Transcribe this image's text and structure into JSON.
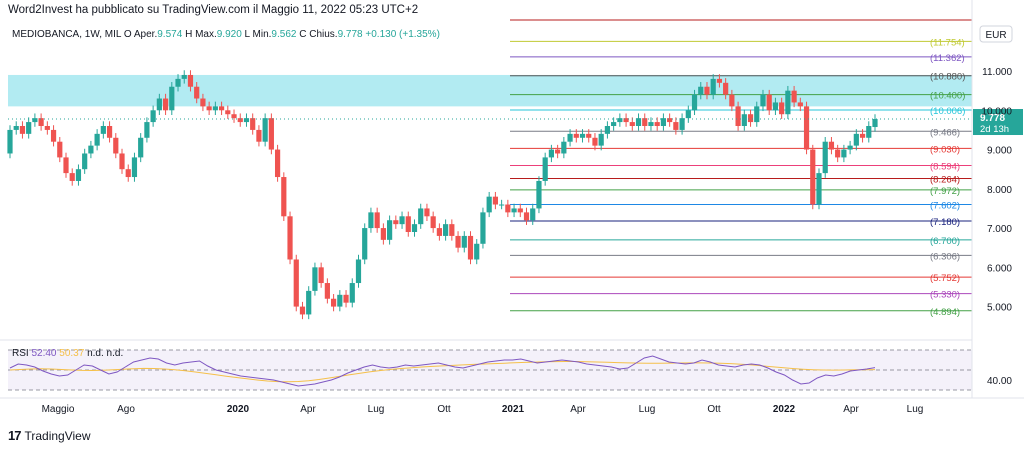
{
  "header": {
    "credit": "Word2Invest ha pubblicato su TradingView.com il Maggio 11, 2022 05:23 UTC+2",
    "symbol": "MEDIOBANCA, 1W, MIL",
    "ohlc": [
      {
        "label": "O",
        "value": ""
      },
      {
        "label": "Aper.",
        "value": "9.574"
      },
      {
        "label": "H",
        "value": ""
      },
      {
        "label": "Max.",
        "value": "9.920"
      },
      {
        "label": "L",
        "value": ""
      },
      {
        "label": "Min.",
        "value": "9.562"
      },
      {
        "label": "C",
        "value": ""
      },
      {
        "label": "Chius.",
        "value": "9.778"
      }
    ],
    "change": "+0.130 (+1.35%)"
  },
  "colors": {
    "up": "#26a69a",
    "down": "#ef5350",
    "zone": "#b2ebf2",
    "rsi_line": "#7e57c2",
    "rsi_ma": "#f5c04a",
    "price_tag": "#26a69a"
  },
  "currency": "EUR",
  "footer": {
    "logo_text": "TradingView",
    "logo_icon": "tradingview-logo-icon"
  },
  "price_tag": {
    "value": "9.778",
    "countdown": "2d 13h"
  },
  "rsi_panel": {
    "label": "RSI",
    "value": "52.40",
    "ma_value": "50.37",
    "extra": [
      "n.d.",
      "n.d."
    ],
    "axis_label": "40.00"
  },
  "chart_data": {
    "type": "candlestick",
    "title": "MEDIOBANCA, 1W, MIL",
    "ylim": [
      4.2,
      12.3
    ],
    "y_ticks": [
      5.0,
      6.0,
      7.0,
      8.0,
      9.0,
      10.0,
      11.0
    ],
    "y_tick_labels": [
      "5.000",
      "6.000",
      "7.000",
      "8.000",
      "9.000",
      "10.000",
      "11.000"
    ],
    "x_tick_labels": [
      "Maggio",
      "Ago",
      "2020",
      "Apr",
      "Lug",
      "Ott",
      "2021",
      "Apr",
      "Lug",
      "Ott",
      "2022",
      "Apr",
      "Lug"
    ],
    "resistance_zone": [
      10.1,
      10.9
    ],
    "levels": [
      {
        "value": 12.3,
        "label": "",
        "color": "#b71c1c"
      },
      {
        "value": 11.754,
        "label": "(11.754)",
        "color": "#c0ca33"
      },
      {
        "value": 11.362,
        "label": "(11.362)",
        "color": "#7e57c2"
      },
      {
        "value": 10.88,
        "label": "(10.880)",
        "color": "#555555"
      },
      {
        "value": 10.4,
        "label": "(10.400)",
        "color": "#43a047"
      },
      {
        "value": 10.006,
        "label": "(10.006)",
        "color": "#26c6da"
      },
      {
        "value": 9.466,
        "label": "(9.466)",
        "color": "#787b86"
      },
      {
        "value": 9.03,
        "label": "(9.030)",
        "color": "#e53935"
      },
      {
        "value": 8.594,
        "label": "(8.594)",
        "color": "#ec407a"
      },
      {
        "value": 8.264,
        "label": "(8.264)",
        "color": "#b71c1c"
      },
      {
        "value": 7.972,
        "label": "(7.972)",
        "color": "#43a047"
      },
      {
        "value": 7.602,
        "label": "(7.602)",
        "color": "#1e88e5"
      },
      {
        "value": 7.18,
        "label": "(7.180)",
        "color": "#1a237e"
      },
      {
        "value": 6.7,
        "label": "(6.700)",
        "color": "#26a69a"
      },
      {
        "value": 6.306,
        "label": "(6.306)",
        "color": "#787b86"
      },
      {
        "value": 5.752,
        "label": "(5.752)",
        "color": "#e53935"
      },
      {
        "value": 5.33,
        "label": "(5.330)",
        "color": "#ab47bc"
      },
      {
        "value": 4.894,
        "label": "(4.894)",
        "color": "#43a047"
      }
    ],
    "candles": [
      [
        8.9,
        9.5
      ],
      [
        9.5,
        9.6
      ],
      [
        9.6,
        9.4
      ],
      [
        9.4,
        9.7
      ],
      [
        9.7,
        9.8
      ],
      [
        9.8,
        9.6
      ],
      [
        9.6,
        9.5
      ],
      [
        9.5,
        9.2
      ],
      [
        9.2,
        8.8
      ],
      [
        8.8,
        8.4
      ],
      [
        8.4,
        8.2
      ],
      [
        8.2,
        8.5
      ],
      [
        8.5,
        8.9
      ],
      [
        8.9,
        9.1
      ],
      [
        9.1,
        9.4
      ],
      [
        9.4,
        9.6
      ],
      [
        9.6,
        9.3
      ],
      [
        9.3,
        8.9
      ],
      [
        8.9,
        8.5
      ],
      [
        8.5,
        8.3
      ],
      [
        8.3,
        8.8
      ],
      [
        8.8,
        9.3
      ],
      [
        9.3,
        9.7
      ],
      [
        9.7,
        10.0
      ],
      [
        10.0,
        10.3
      ],
      [
        10.3,
        10.0
      ],
      [
        10.0,
        10.6
      ],
      [
        10.6,
        10.8
      ],
      [
        10.8,
        10.9
      ],
      [
        10.9,
        10.6
      ],
      [
        10.6,
        10.3
      ],
      [
        10.3,
        10.1
      ],
      [
        10.1,
        10.0
      ],
      [
        10.0,
        10.1
      ],
      [
        10.1,
        10.0
      ],
      [
        10.0,
        9.9
      ],
      [
        9.9,
        9.8
      ],
      [
        9.8,
        9.7
      ],
      [
        9.7,
        9.8
      ],
      [
        9.8,
        9.5
      ],
      [
        9.5,
        9.2
      ],
      [
        9.2,
        9.8
      ],
      [
        9.8,
        9.0
      ],
      [
        9.0,
        8.3
      ],
      [
        8.3,
        7.3
      ],
      [
        7.3,
        6.2
      ],
      [
        6.2,
        5.0
      ],
      [
        5.0,
        4.8
      ],
      [
        4.8,
        5.4
      ],
      [
        5.4,
        6.0
      ],
      [
        6.0,
        5.6
      ],
      [
        5.6,
        5.2
      ],
      [
        5.2,
        5.0
      ],
      [
        5.0,
        5.3
      ],
      [
        5.3,
        5.1
      ],
      [
        5.1,
        5.6
      ],
      [
        5.6,
        6.2
      ],
      [
        6.2,
        7.0
      ],
      [
        7.0,
        7.4
      ],
      [
        7.4,
        7.0
      ],
      [
        7.0,
        6.7
      ],
      [
        6.7,
        7.2
      ],
      [
        7.2,
        7.1
      ],
      [
        7.1,
        7.3
      ],
      [
        7.3,
        6.9
      ],
      [
        6.9,
        7.1
      ],
      [
        7.1,
        7.5
      ],
      [
        7.5,
        7.3
      ],
      [
        7.3,
        7.0
      ],
      [
        7.0,
        6.8
      ],
      [
        6.8,
        7.1
      ],
      [
        7.1,
        6.8
      ],
      [
        6.8,
        6.5
      ],
      [
        6.5,
        6.8
      ],
      [
        6.8,
        6.2
      ],
      [
        6.2,
        6.6
      ],
      [
        6.6,
        7.4
      ],
      [
        7.4,
        7.8
      ],
      [
        7.8,
        7.6
      ],
      [
        7.6,
        7.6
      ],
      [
        7.6,
        7.4
      ],
      [
        7.4,
        7.5
      ],
      [
        7.5,
        7.4
      ],
      [
        7.4,
        7.2
      ],
      [
        7.2,
        7.5
      ],
      [
        7.5,
        8.2
      ],
      [
        8.2,
        8.8
      ],
      [
        8.8,
        9.0
      ],
      [
        9.0,
        8.9
      ],
      [
        8.9,
        9.2
      ],
      [
        9.2,
        9.4
      ],
      [
        9.4,
        9.3
      ],
      [
        9.3,
        9.4
      ],
      [
        9.4,
        9.3
      ],
      [
        9.3,
        9.1
      ],
      [
        9.1,
        9.4
      ],
      [
        9.4,
        9.6
      ],
      [
        9.6,
        9.7
      ],
      [
        9.7,
        9.8
      ],
      [
        9.8,
        9.7
      ],
      [
        9.7,
        9.6
      ],
      [
        9.6,
        9.8
      ],
      [
        9.8,
        9.6
      ],
      [
        9.6,
        9.7
      ],
      [
        9.7,
        9.6
      ],
      [
        9.6,
        9.8
      ],
      [
        9.8,
        9.7
      ],
      [
        9.7,
        9.5
      ],
      [
        9.5,
        9.8
      ],
      [
        9.8,
        10.0
      ],
      [
        10.0,
        10.4
      ],
      [
        10.4,
        10.6
      ],
      [
        10.6,
        10.4
      ],
      [
        10.4,
        10.8
      ],
      [
        10.8,
        10.7
      ],
      [
        10.7,
        10.4
      ],
      [
        10.4,
        10.1
      ],
      [
        10.1,
        9.6
      ],
      [
        9.6,
        9.9
      ],
      [
        9.9,
        9.7
      ],
      [
        9.7,
        10.1
      ],
      [
        10.1,
        10.4
      ],
      [
        10.4,
        10.0
      ],
      [
        10.0,
        10.2
      ],
      [
        10.2,
        9.9
      ],
      [
        9.9,
        10.5
      ],
      [
        10.5,
        10.2
      ],
      [
        10.2,
        10.1
      ],
      [
        10.1,
        9.0
      ],
      [
        9.0,
        7.6
      ],
      [
        7.6,
        8.4
      ],
      [
        8.4,
        9.2
      ],
      [
        9.2,
        9.0
      ],
      [
        9.0,
        8.8
      ],
      [
        8.8,
        9.0
      ],
      [
        9.0,
        9.1
      ],
      [
        9.1,
        9.4
      ],
      [
        9.4,
        9.3
      ],
      [
        9.3,
        9.6
      ],
      [
        9.574,
        9.778
      ]
    ],
    "rsi_values": [
      52,
      56,
      55,
      53,
      49,
      46,
      44,
      45,
      50,
      55,
      54,
      50,
      46,
      48,
      53,
      58,
      60,
      62,
      61,
      57,
      55,
      57,
      58,
      59,
      54,
      50,
      48,
      46,
      44,
      43,
      42,
      41,
      40,
      38,
      36,
      34,
      35,
      36,
      38,
      40,
      43,
      47,
      50,
      53,
      55,
      53,
      52,
      53,
      55,
      54,
      55,
      56,
      57,
      55,
      53,
      52,
      54,
      56,
      58,
      59,
      60,
      60,
      61,
      59,
      57,
      58,
      59,
      60,
      59,
      58,
      56,
      55,
      54,
      53,
      51,
      52,
      57,
      62,
      64,
      61,
      58,
      57,
      56,
      57,
      60,
      58,
      55,
      54,
      53,
      55,
      56,
      55,
      52,
      48,
      45,
      40,
      36,
      37,
      42,
      45,
      44,
      46,
      49,
      50,
      51,
      52.4
    ],
    "rsi_ma_values": [
      50,
      50.5,
      51,
      51.2,
      51,
      50.5,
      50,
      49.6,
      49.5,
      49.8,
      50.2,
      50.8,
      51.3,
      51.6,
      51.5,
      51,
      50.2,
      49.2,
      48,
      46.6,
      45.2,
      43.8,
      42.5,
      41.2,
      40,
      39,
      38.4,
      38.2,
      38.5,
      39.3,
      40.5,
      42,
      43.6,
      45.2,
      46.8,
      48.2,
      49.5,
      50.6,
      51.5,
      52.3,
      53,
      53.6,
      54.1,
      54.6,
      55.1,
      55.6,
      56,
      56.4,
      56.8,
      57.2,
      57.6,
      57.9,
      58.2,
      58.4,
      58.5,
      58.5,
      58.3,
      58,
      57.7,
      57.4,
      57.1,
      56.9,
      56.8,
      56.8,
      56.9,
      57,
      57.1,
      57.1,
      57,
      56.8,
      56.4,
      55.8,
      55.1,
      54.2,
      53.3,
      52.4,
      51.5,
      50.8,
      50.3,
      50,
      49.9,
      50,
      50.2,
      50.3,
      50.37
    ]
  }
}
